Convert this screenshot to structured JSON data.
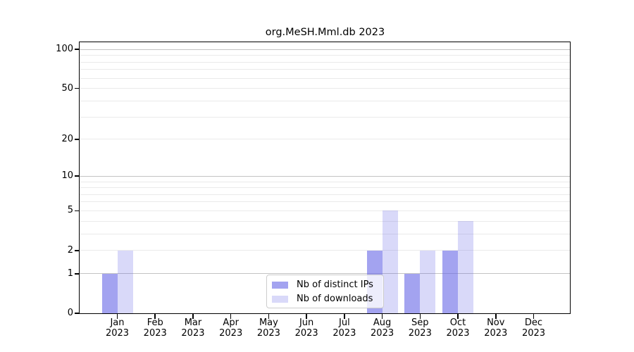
{
  "chart_data": {
    "type": "bar",
    "title": "org.MeSH.Mml.db 2023",
    "categories": [
      "Jan",
      "Feb",
      "Mar",
      "Apr",
      "May",
      "Jun",
      "Jul",
      "Aug",
      "Sep",
      "Oct",
      "Nov",
      "Dec"
    ],
    "category_year": "2023",
    "series": [
      {
        "name": "Nb of distinct IPs",
        "values": [
          1,
          0,
          0,
          0,
          0,
          0,
          0,
          2,
          1,
          2,
          0,
          0
        ],
        "color": "rgba(102,102,230,0.6)"
      },
      {
        "name": "Nb of downloads",
        "values": [
          2,
          0,
          0,
          0,
          0,
          0,
          0,
          5,
          2,
          4,
          0,
          0
        ],
        "color": "rgba(102,102,230,0.25)"
      }
    ],
    "y_axis": {
      "scale": "log1p",
      "range": [
        0,
        100
      ],
      "tick_values": [
        0,
        1,
        2,
        5,
        10,
        20,
        50,
        100
      ],
      "gridline_values": [
        1,
        2,
        3,
        4,
        5,
        6,
        7,
        8,
        9,
        10,
        20,
        30,
        40,
        50,
        60,
        70,
        80,
        90,
        100
      ],
      "emphasized_gridlines": [
        1,
        10,
        100
      ]
    },
    "legend": {
      "position": "lower center"
    },
    "colors": {
      "grid_major": "#c3c3c3",
      "grid_minor": "#eaeaea",
      "axis": "#000000",
      "background": "#ffffff"
    }
  }
}
